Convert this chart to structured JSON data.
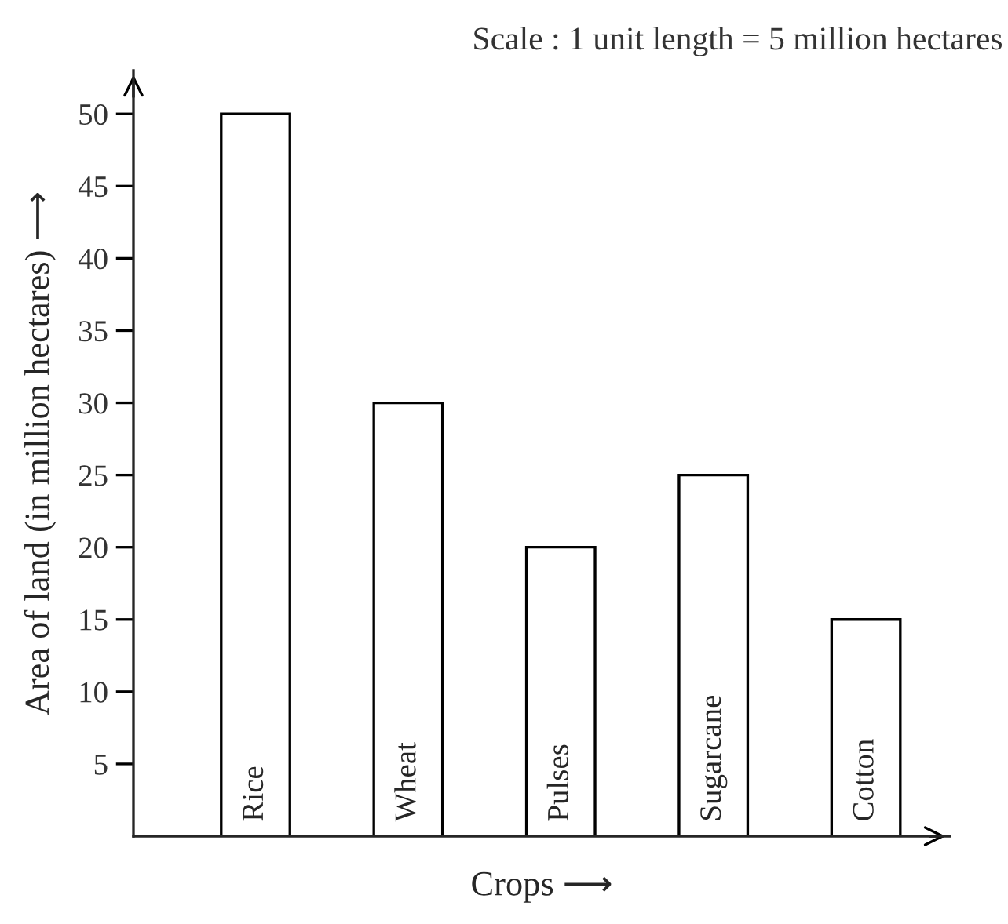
{
  "chart_data": {
    "type": "bar",
    "xlabel": "Crops ⟶",
    "ylabel": "Area of land (in million hectares) ⟶",
    "annotations": [
      "Scale : 1 unit length = 5 million hectares"
    ],
    "categories": [
      "Rice",
      "Wheat",
      "Pulses",
      "Sugarcane",
      "Cotton"
    ],
    "values": [
      50,
      30,
      20,
      25,
      15
    ],
    "color": "#ffffff",
    "ylim": [
      0,
      53
    ],
    "yticks": [
      5,
      10,
      15,
      20,
      25,
      30,
      35,
      40,
      45,
      50
    ],
    "grid": false
  }
}
